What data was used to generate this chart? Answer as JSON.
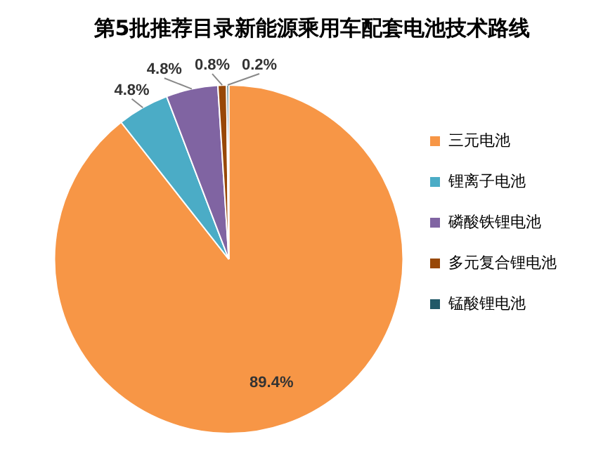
{
  "chart_data": {
    "type": "pie",
    "title": "第5批推荐目录新能源乘用车配套电池技术路线",
    "categories": [
      "三元电池",
      "锂离子电池",
      "磷酸铁锂电池",
      "多元复合锂电池",
      "锰酸锂电池"
    ],
    "values": [
      89.4,
      4.8,
      4.8,
      0.8,
      0.2
    ],
    "value_labels": [
      "89.4%",
      "4.8%",
      "4.8%",
      "0.8%",
      "0.2%"
    ],
    "colors": [
      "#f79646",
      "#4bacc6",
      "#8064a2",
      "#984807",
      "#215968"
    ],
    "legend": "right"
  }
}
